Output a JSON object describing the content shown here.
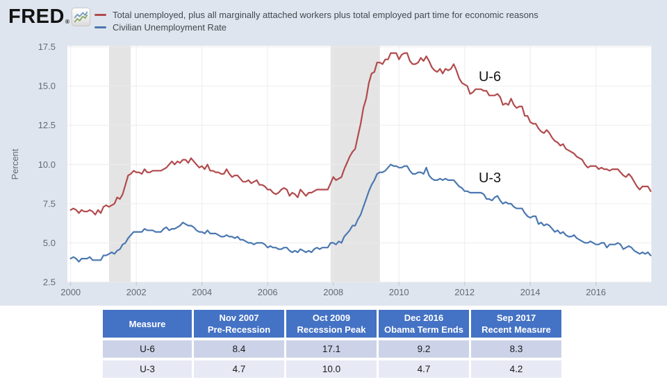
{
  "header": {
    "logo_text": "FRED",
    "logo_reg_mark": "®"
  },
  "chart_data": {
    "type": "line",
    "title": "",
    "xlabel": "",
    "ylabel": "Percent",
    "ylim": [
      2.5,
      17.5
    ],
    "yticks": [
      2.5,
      5.0,
      7.5,
      10.0,
      12.5,
      15.0,
      17.5
    ],
    "xticks": [
      2000,
      2002,
      2004,
      2006,
      2008,
      2010,
      2012,
      2014,
      2016
    ],
    "x_start": "2000-01",
    "x_end": "2017-09",
    "x_frequency": "monthly",
    "grid": true,
    "outer_bg": "#dfe5ee",
    "plot_bg": "#ffffff",
    "grid_color": "#ececec",
    "band_color": "#e4e4e4",
    "recession_shading": [
      {
        "start": 2001.17,
        "end": 2001.83
      },
      {
        "start": 2007.92,
        "end": 2009.42
      }
    ],
    "annotations": [
      {
        "text": "U-6",
        "x": 2012.77,
        "y": 15.32
      },
      {
        "text": "U-3",
        "x": 2012.77,
        "y": 8.86
      }
    ],
    "series": [
      {
        "short_name": "U-6",
        "name": "Total unemployed, plus all marginally attached workers plus total employed part time for economic reasons",
        "color": "#b14a4c",
        "values": [
          7.1,
          7.2,
          7.1,
          6.9,
          7.1,
          7.0,
          7.0,
          7.1,
          7.0,
          6.8,
          7.1,
          6.9,
          7.3,
          7.4,
          7.3,
          7.4,
          7.5,
          7.9,
          7.8,
          8.1,
          8.7,
          9.3,
          9.4,
          9.6,
          9.5,
          9.5,
          9.4,
          9.7,
          9.5,
          9.5,
          9.6,
          9.6,
          9.6,
          9.6,
          9.7,
          9.8,
          10.0,
          10.2,
          10.0,
          10.2,
          10.1,
          10.3,
          10.3,
          10.1,
          10.4,
          10.2,
          10.0,
          9.8,
          9.9,
          9.7,
          10.0,
          9.6,
          9.6,
          9.5,
          9.5,
          9.4,
          9.4,
          9.7,
          9.4,
          9.2,
          9.3,
          9.3,
          9.1,
          8.9,
          8.9,
          9.0,
          8.8,
          8.9,
          9.0,
          8.7,
          8.7,
          8.6,
          8.4,
          8.4,
          8.2,
          8.1,
          8.2,
          8.4,
          8.5,
          8.4,
          8.0,
          8.2,
          8.1,
          7.9,
          8.4,
          8.2,
          8.0,
          8.2,
          8.2,
          8.3,
          8.4,
          8.4,
          8.4,
          8.4,
          8.4,
          8.8,
          9.2,
          9.0,
          9.1,
          9.2,
          9.7,
          10.1,
          10.5,
          10.8,
          11.0,
          11.8,
          12.6,
          13.6,
          14.2,
          15.2,
          15.8,
          15.9,
          16.5,
          16.5,
          16.4,
          16.7,
          16.7,
          17.1,
          17.1,
          17.1,
          16.7,
          17.0,
          17.1,
          17.1,
          16.6,
          16.4,
          16.4,
          16.5,
          16.8,
          16.6,
          16.9,
          16.6,
          16.2,
          16.0,
          15.9,
          16.1,
          15.8,
          16.1,
          16.0,
          16.1,
          16.4,
          16.0,
          15.5,
          15.2,
          15.1,
          15.0,
          14.5,
          14.6,
          14.8,
          14.8,
          14.8,
          14.7,
          14.7,
          14.4,
          14.4,
          14.4,
          14.5,
          14.3,
          13.8,
          13.9,
          13.8,
          14.2,
          13.8,
          13.6,
          13.7,
          13.7,
          13.1,
          13.1,
          12.7,
          12.6,
          12.6,
          12.3,
          12.1,
          12.0,
          12.2,
          12.0,
          11.7,
          11.5,
          11.4,
          11.2,
          11.3,
          11.0,
          10.9,
          10.8,
          10.7,
          10.5,
          10.4,
          10.3,
          10.0,
          9.8,
          9.9,
          9.9,
          9.9,
          9.7,
          9.8,
          9.7,
          9.7,
          9.6,
          9.7,
          9.7,
          9.7,
          9.5,
          9.3,
          9.2,
          9.4,
          9.2,
          8.9,
          8.6,
          8.4,
          8.6,
          8.6,
          8.6,
          8.3
        ]
      },
      {
        "short_name": "U-3",
        "name": "Civilian Unemployment Rate",
        "color": "#4a77b0",
        "values": [
          4.0,
          4.1,
          4.0,
          3.8,
          4.0,
          4.0,
          4.0,
          4.1,
          3.9,
          3.9,
          3.9,
          3.9,
          4.2,
          4.2,
          4.3,
          4.4,
          4.3,
          4.5,
          4.6,
          4.9,
          5.0,
          5.3,
          5.5,
          5.7,
          5.7,
          5.7,
          5.7,
          5.9,
          5.8,
          5.8,
          5.8,
          5.7,
          5.7,
          5.7,
          5.9,
          6.0,
          5.8,
          5.9,
          5.9,
          6.0,
          6.1,
          6.3,
          6.2,
          6.1,
          6.1,
          6.0,
          5.8,
          5.7,
          5.7,
          5.6,
          5.8,
          5.6,
          5.6,
          5.6,
          5.5,
          5.4,
          5.4,
          5.5,
          5.4,
          5.4,
          5.3,
          5.4,
          5.2,
          5.2,
          5.1,
          5.0,
          5.0,
          4.9,
          5.0,
          5.0,
          5.0,
          4.9,
          4.7,
          4.8,
          4.7,
          4.7,
          4.6,
          4.6,
          4.7,
          4.7,
          4.5,
          4.4,
          4.5,
          4.4,
          4.6,
          4.5,
          4.4,
          4.5,
          4.4,
          4.6,
          4.7,
          4.6,
          4.7,
          4.7,
          4.7,
          5.0,
          5.0,
          4.9,
          5.1,
          5.0,
          5.4,
          5.6,
          5.8,
          6.1,
          6.1,
          6.5,
          6.8,
          7.3,
          7.8,
          8.3,
          8.7,
          9.0,
          9.4,
          9.5,
          9.5,
          9.6,
          9.8,
          10.0,
          9.9,
          9.9,
          9.8,
          9.8,
          9.9,
          9.9,
          9.6,
          9.4,
          9.4,
          9.5,
          9.5,
          9.4,
          9.8,
          9.3,
          9.1,
          9.0,
          9.0,
          9.1,
          9.0,
          9.1,
          9.0,
          9.0,
          9.0,
          8.8,
          8.6,
          8.5,
          8.3,
          8.3,
          8.2,
          8.2,
          8.2,
          8.2,
          8.2,
          8.1,
          7.8,
          7.8,
          7.7,
          7.9,
          8.0,
          7.7,
          7.5,
          7.6,
          7.5,
          7.5,
          7.3,
          7.2,
          7.2,
          7.2,
          6.9,
          6.7,
          6.6,
          6.7,
          6.7,
          6.2,
          6.3,
          6.1,
          6.2,
          6.1,
          5.9,
          5.7,
          5.8,
          5.6,
          5.7,
          5.5,
          5.4,
          5.4,
          5.5,
          5.3,
          5.2,
          5.1,
          5.0,
          5.0,
          5.1,
          5.0,
          4.9,
          4.9,
          5.0,
          5.0,
          4.7,
          4.9,
          4.9,
          4.9,
          5.0,
          4.9,
          4.6,
          4.7,
          4.8,
          4.7,
          4.5,
          4.4,
          4.3,
          4.4,
          4.3,
          4.4,
          4.2
        ]
      }
    ]
  },
  "table": {
    "header_bg": "#4472c4",
    "row_bgs": [
      "#ccd3e8",
      "#e7e9f4"
    ],
    "columns": [
      {
        "line1": "Measure",
        "line2": ""
      },
      {
        "line1": "Nov 2007",
        "line2": "Pre-Recession"
      },
      {
        "line1": "Oct 2009",
        "line2": "Recession Peak"
      },
      {
        "line1": "Dec 2016",
        "line2": "Obama Term Ends"
      },
      {
        "line1": "Sep 2017",
        "line2": "Recent Measure"
      }
    ],
    "rows": [
      {
        "measure": "U-6",
        "values": [
          "8.4",
          "17.1",
          "9.2",
          "8.3"
        ]
      },
      {
        "measure": "U-3",
        "values": [
          "4.7",
          "10.0",
          "4.7",
          "4.2"
        ]
      }
    ]
  }
}
